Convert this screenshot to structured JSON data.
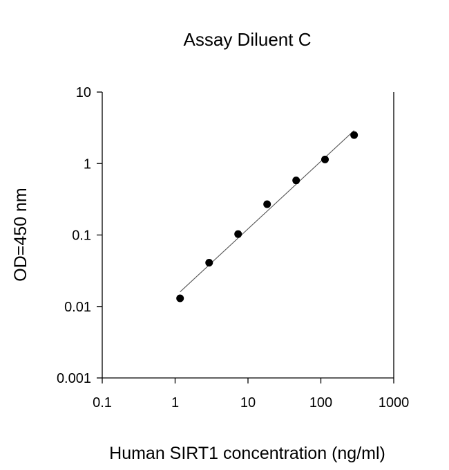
{
  "chart_data": {
    "type": "scatter",
    "title": "Assay Diluent C",
    "xlabel": "Human SIRT1 concentration (ng/ml)",
    "ylabel": "OD=450 nm",
    "xscale": "log",
    "yscale": "log",
    "xlim": [
      0.1,
      1000
    ],
    "ylim": [
      0.001,
      10
    ],
    "xticks": [
      0.1,
      1,
      10,
      100,
      1000
    ],
    "yticks": [
      0.001,
      0.01,
      0.1,
      1,
      10
    ],
    "xtick_labels": [
      "0.1",
      "1",
      "10",
      "100",
      "1000"
    ],
    "ytick_labels": [
      "0.001",
      "0.01",
      "0.1",
      "1",
      "10"
    ],
    "grid": false,
    "legend": "none",
    "series": [
      {
        "x": [
          1.17,
          2.93,
          7.32,
          18.3,
          45.8,
          114,
          286
        ],
        "y": [
          0.013,
          0.041,
          0.103,
          0.27,
          0.58,
          1.14,
          2.5
        ]
      }
    ],
    "fit_line": {
      "x": [
        1.17,
        286
      ],
      "y": [
        0.016,
        2.9
      ]
    },
    "colors": {
      "marker": "#000000",
      "fit": "#555555",
      "axes": "#000000"
    }
  }
}
